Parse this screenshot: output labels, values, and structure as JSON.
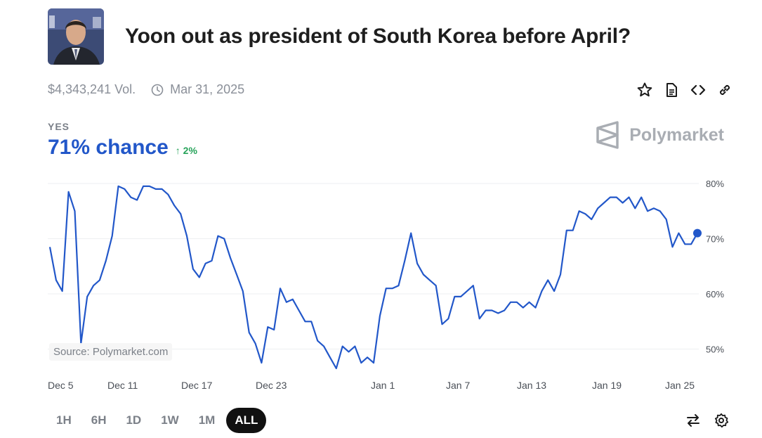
{
  "market": {
    "title": "Yoon out as president of South Korea before April?",
    "volume": "$4,343,241 Vol.",
    "end_date": "Mar 31, 2025",
    "outcome_label": "YES",
    "chance": "71% chance",
    "delta": "2%",
    "brand": "Polymarket",
    "source": "Source: Polymarket.com"
  },
  "icons": {
    "avatar": "market-photo",
    "clock": "clock-icon",
    "actions": [
      "star-icon",
      "document-icon",
      "code-icon",
      "link-icon"
    ],
    "bottom": [
      "swap-arrows-icon",
      "gear-icon"
    ]
  },
  "colors": {
    "line": "#2257c9",
    "delta": "#27a35a",
    "brand": "#a9adb3"
  },
  "time_ranges": [
    "1H",
    "6H",
    "1D",
    "1W",
    "1M",
    "ALL"
  ],
  "active_range": "ALL",
  "chart_data": {
    "type": "line",
    "title": "",
    "xlabel": "",
    "ylabel": "",
    "ylim": [
      45,
      80
    ],
    "yticks": [
      50,
      60,
      70,
      80
    ],
    "ytick_labels": [
      "50%",
      "60%",
      "70%",
      "80%"
    ],
    "xticks": [
      "Dec 5",
      "Dec 11",
      "Dec 17",
      "Dec 23",
      "Jan 1",
      "Jan 7",
      "Jan 13",
      "Jan 19",
      "Jan 25"
    ],
    "grid": true,
    "series": [
      {
        "values": [
          68.5,
          62.5,
          60.5,
          78.5,
          75,
          51,
          59.5,
          61.5,
          62.5,
          66,
          70.5,
          79.5,
          79,
          77.5,
          77,
          79.5,
          79.5,
          79,
          79,
          78,
          76,
          74.5,
          70.5,
          64.5,
          63,
          65.5,
          66,
          70.5,
          70,
          66.5,
          63.5,
          60.5,
          53,
          51,
          47.5,
          54,
          53.5,
          61,
          58.5,
          59,
          57,
          55,
          55,
          51.5,
          50.5,
          48.5,
          46.5,
          50.5,
          49.5,
          50.5,
          47.5,
          48.5,
          47.5,
          56,
          61,
          61,
          61.5,
          66,
          71,
          65.5,
          63.5,
          62.5,
          61.5,
          54.5,
          55.5,
          59.5,
          59.5,
          60.5,
          61.5,
          55.5,
          57,
          57,
          56.5,
          57,
          58.5,
          58.5,
          57.5,
          58.5,
          57.5,
          60.5,
          62.5,
          60.5,
          63.5,
          71.5,
          71.5,
          75,
          74.5,
          73.5,
          75.5,
          76.5,
          77.5,
          77.5,
          76.5,
          77.5,
          75.5,
          77.5,
          75,
          75.5,
          75,
          73.5,
          68.5,
          71,
          69,
          69,
          71
        ]
      }
    ]
  }
}
